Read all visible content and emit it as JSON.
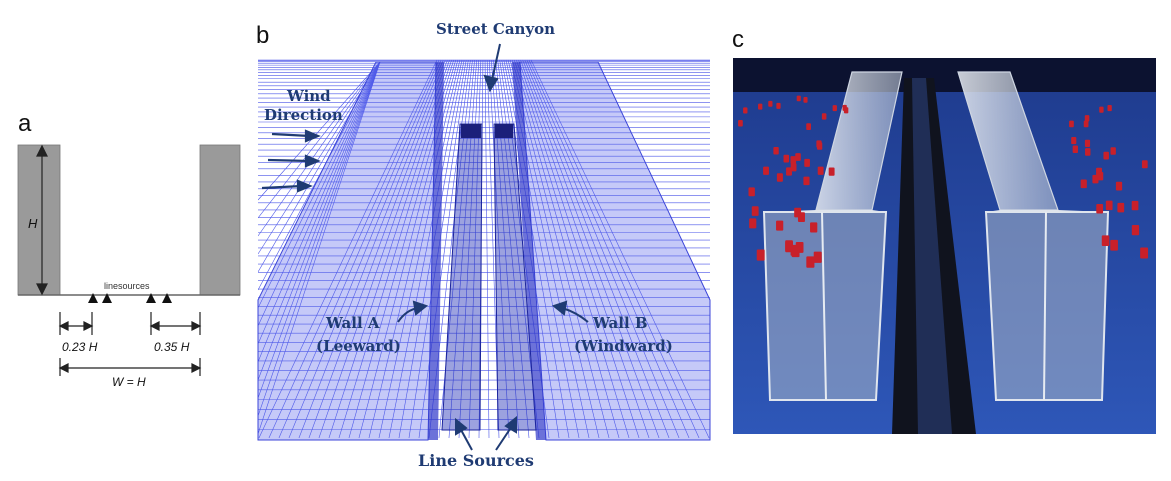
{
  "panels": {
    "a": {
      "letter": "a",
      "height_label": "H",
      "source_label": "linesources",
      "offset_left_label": "0.23 H",
      "offset_right_label": "0.35 H",
      "width_label": "W = H"
    },
    "b": {
      "letter": "b",
      "street_canyon_label": "Street Canyon",
      "wind_direction_line1": "Wind",
      "wind_direction_line2": "Direction",
      "wall_a_line1": "Wall A",
      "wall_a_line2": "(Leeward)",
      "wall_b_line1": "Wall B",
      "wall_b_line2": "(Windward)",
      "line_sources_label": "Line Sources"
    },
    "c": {
      "letter": "c"
    }
  },
  "colors": {
    "building_gray": "#9a9a9a",
    "mesh_blue": "#4a55e8",
    "label_navy": "#1f3b73",
    "photo_blue": "#2a4fa8"
  }
}
